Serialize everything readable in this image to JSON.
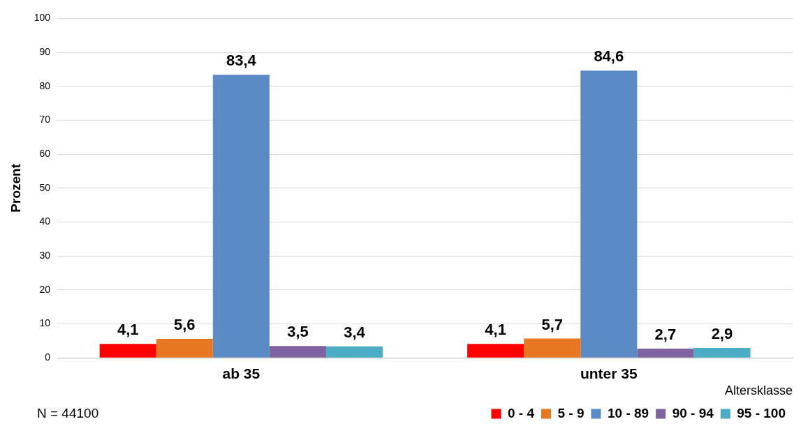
{
  "chart_data": {
    "type": "bar",
    "ylabel": "Prozent",
    "legend_title": "Altersklasse",
    "categories": [
      "ab 35",
      "unter 35"
    ],
    "series": [
      {
        "name": "0 - 4",
        "color": "#ff0000",
        "values": [
          4.1,
          4.1
        ],
        "value_labels": [
          "4,1",
          "4,1"
        ]
      },
      {
        "name": "5 - 9",
        "color": "#e87722",
        "values": [
          5.6,
          5.7
        ],
        "value_labels": [
          "5,6",
          "5,7"
        ]
      },
      {
        "name": "10 - 89",
        "color": "#5b8bc5",
        "values": [
          83.4,
          84.6
        ],
        "value_labels": [
          "83,4",
          "84,6"
        ]
      },
      {
        "name": "90 - 94",
        "color": "#7f62a0",
        "values": [
          3.5,
          2.7
        ],
        "value_labels": [
          "3,5",
          "2,7"
        ]
      },
      {
        "name": "95 - 100",
        "color": "#4bacc6",
        "values": [
          3.4,
          2.9
        ],
        "value_labels": [
          "3,4",
          "2,9"
        ]
      }
    ],
    "ylim": [
      0,
      100
    ],
    "yticks": [
      0,
      10,
      20,
      30,
      40,
      50,
      60,
      70,
      80,
      90,
      100
    ],
    "grid": "y",
    "legend": "bottom right",
    "annotations": [
      "N = 44100"
    ]
  }
}
